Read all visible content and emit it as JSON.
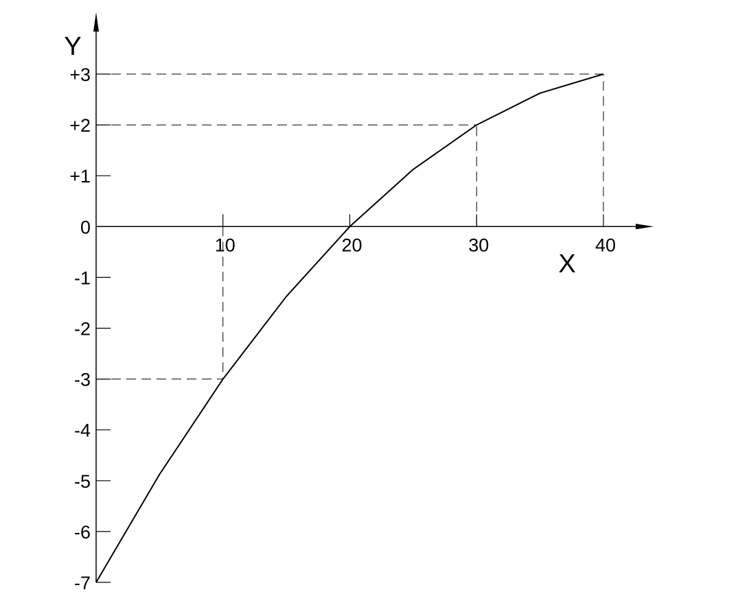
{
  "chart_data": {
    "type": "line",
    "title": "",
    "xlabel": "X",
    "ylabel": "Y",
    "xlim": [
      0,
      40
    ],
    "ylim": [
      -7,
      3
    ],
    "grid": false,
    "x_ticks": [
      10,
      20,
      30,
      40
    ],
    "x_tick_labels": [
      "10",
      "20",
      "30",
      "40"
    ],
    "y_ticks": [
      3,
      2,
      1,
      0,
      -1,
      -2,
      -3,
      -4,
      -5,
      -6,
      -7
    ],
    "y_tick_labels": [
      "+3",
      "+2",
      "+1",
      "0",
      "-1",
      "-2",
      "-3",
      "-4",
      "-5",
      "-6",
      "-7"
    ],
    "series": [
      {
        "x": [
          0,
          5,
          10,
          15,
          20,
          25,
          30,
          35,
          40
        ],
        "y": [
          -7,
          -4.875,
          -3,
          -1.375,
          0,
          1.125,
          2,
          2.625,
          3
        ],
        "color": "#000000"
      }
    ],
    "guide_points": [
      {
        "x": 10,
        "y": -3
      },
      {
        "x": 30,
        "y": 2
      },
      {
        "x": 40,
        "y": 3
      }
    ]
  }
}
